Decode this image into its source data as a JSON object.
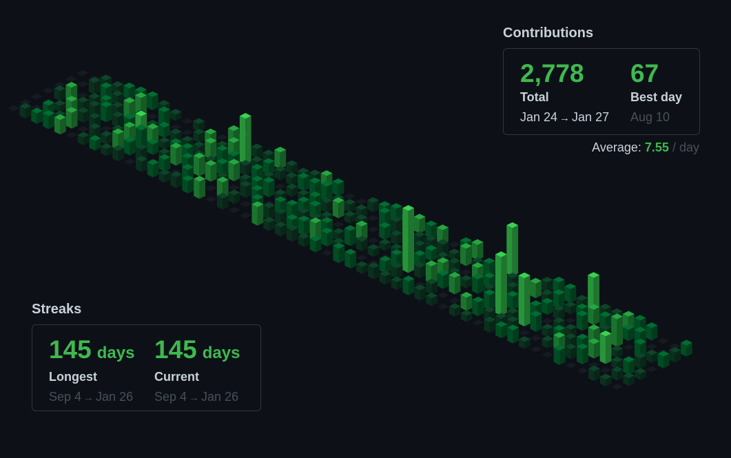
{
  "contributions": {
    "title": "Contributions",
    "total_value": "2,778",
    "total_label": "Total",
    "total_from": "Jan 24",
    "total_to": "Jan 27",
    "best_value": "67",
    "best_label": "Best day",
    "best_date": "Aug 10",
    "average_label": "Average:",
    "average_value": "7.55",
    "average_unit": "/ day"
  },
  "streaks": {
    "title": "Streaks",
    "longest_value": "145",
    "longest_unit": "days",
    "longest_label": "Longest",
    "longest_from": "Sep 4",
    "longest_to": "Jan 26",
    "current_value": "145",
    "current_unit": "days",
    "current_label": "Current",
    "current_from": "Sep 4",
    "current_to": "Jan 26"
  },
  "arrow": "→",
  "colors": {
    "background": "#0d1117",
    "accent": "#3fb950",
    "level_empty": "#161b22",
    "level_1": "#0e4429",
    "level_2": "#006d32",
    "level_3": "#26a641",
    "level_4": "#39d353"
  }
}
